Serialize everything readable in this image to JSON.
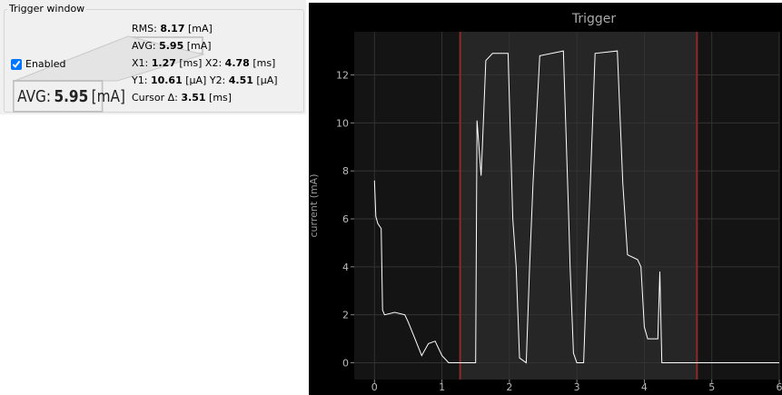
{
  "panel": {
    "title": "Trigger window",
    "checkbox": {
      "label": "Enabled",
      "checked": true
    },
    "rows": [
      [
        {
          "label": "RMS:",
          "value": 8.17,
          "unit": "[mA]"
        }
      ],
      [
        {
          "label": "AVG:",
          "value": 5.95,
          "unit": "[mA]"
        }
      ],
      [
        {
          "label": "X1:",
          "value": 1.27,
          "unit": "[ms]"
        },
        {
          "label": "X2:",
          "value": 4.78,
          "unit": "[ms]"
        }
      ],
      [
        {
          "label": "Y1:",
          "value": 10.61,
          "unit": "[µA]"
        },
        {
          "label": "Y2:",
          "value": 4.51,
          "unit": "[µA]"
        }
      ],
      [
        {
          "label": "Cursor Δ:",
          "value": 3.51,
          "unit": "[ms]"
        }
      ]
    ]
  },
  "chart_data": {
    "type": "line",
    "title": "Trigger",
    "y_label": "current (mA)",
    "xlim": [
      -0.3,
      6
    ],
    "ylim": [
      -0.7,
      13.8
    ],
    "xticks": [
      0,
      1,
      2,
      3,
      4,
      5,
      6
    ],
    "yticks": [
      0,
      2,
      4,
      6,
      8,
      10,
      12
    ],
    "grid": true,
    "series": [
      {
        "color": "#ffffff",
        "x": [
          0.0,
          0.02,
          0.05,
          0.1,
          0.12,
          0.15,
          0.3,
          0.45,
          0.5,
          0.6,
          0.7,
          0.8,
          0.9,
          1.0,
          1.1,
          1.5,
          1.52,
          1.58,
          1.6,
          1.65,
          1.75,
          1.98,
          2.05,
          2.1,
          2.15,
          2.25,
          2.3,
          2.35,
          2.45,
          2.8,
          2.88,
          2.9,
          2.95,
          3.0,
          3.1,
          3.15,
          3.2,
          3.27,
          3.6,
          3.68,
          3.75,
          3.9,
          3.95,
          4.0,
          4.05,
          4.2,
          4.23,
          4.26,
          6.0
        ],
        "values": [
          7.6,
          6.1,
          5.8,
          5.6,
          2.2,
          2.0,
          2.1,
          2.0,
          1.7,
          1.0,
          0.3,
          0.8,
          0.9,
          0.3,
          0.0,
          0.0,
          10.1,
          7.8,
          9.0,
          12.6,
          12.9,
          12.9,
          6.0,
          4.0,
          0.2,
          0.0,
          4.0,
          7.5,
          12.8,
          13.0,
          6.0,
          4.0,
          0.4,
          0.0,
          0.0,
          4.0,
          7.5,
          12.9,
          13.0,
          7.5,
          4.5,
          4.3,
          4.0,
          1.5,
          1.0,
          1.0,
          3.8,
          0.0,
          0.0
        ]
      }
    ]
  }
}
